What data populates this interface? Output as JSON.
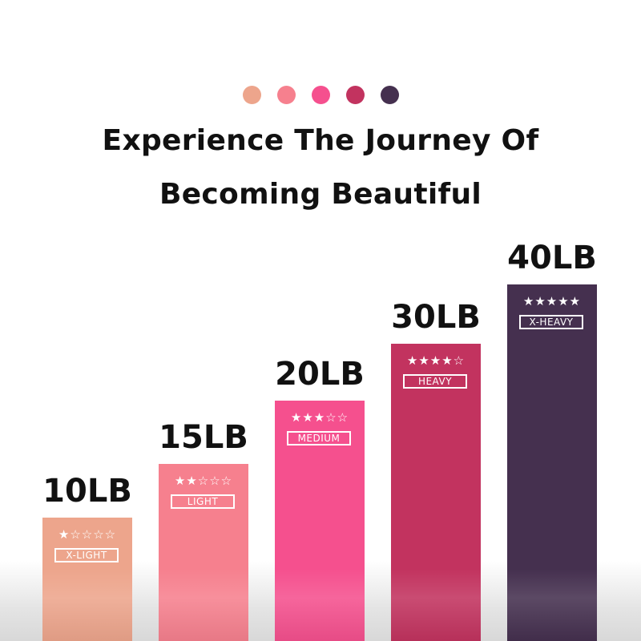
{
  "header": {
    "dot_colors": [
      "#EDA58C",
      "#F6808E",
      "#F5508E",
      "#C2335F",
      "#45304F"
    ],
    "title_line1": "Experience The Journey Of",
    "title_line2": "Becoming Beautiful"
  },
  "chart_data": {
    "type": "bar",
    "categories": [
      "X-LIGHT",
      "LIGHT",
      "MEDIUM",
      "HEAVY",
      "X-HEAVY"
    ],
    "value_labels": [
      "10LB",
      "15LB",
      "20LB",
      "30LB",
      "40LB"
    ],
    "values": [
      10,
      15,
      20,
      30,
      40
    ],
    "star_ratings": [
      1,
      2,
      3,
      4,
      5
    ],
    "star_max": 5,
    "colors": [
      "#EDA58C",
      "#F6808E",
      "#F5508E",
      "#C2335F",
      "#45304F"
    ],
    "title": "",
    "xlabel": "",
    "ylabel": "",
    "grid": false
  }
}
